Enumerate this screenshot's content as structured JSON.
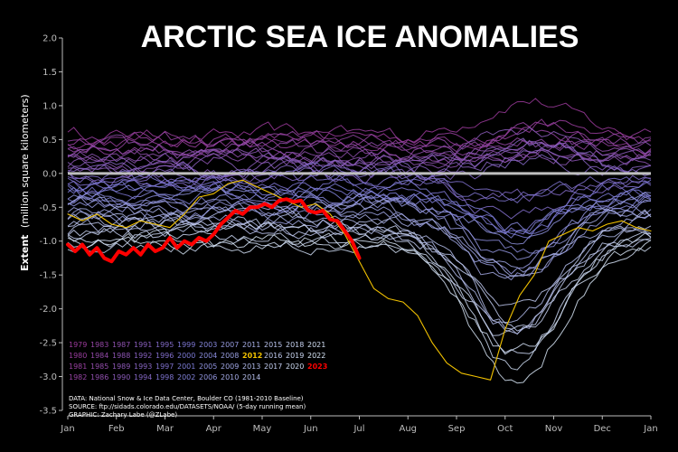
{
  "chart_data": {
    "type": "line",
    "title": "ARCTIC SEA ICE ANOMALIES",
    "ylabel_bold": "Extent",
    "ylabel_rest": "(million square kilometers)",
    "ylim": [
      -3.5,
      2.0
    ],
    "yticks": [
      "2.0",
      "1.5",
      "1.0",
      "0.5",
      "0.0",
      "-0.5",
      "-1.0",
      "-1.5",
      "-2.0",
      "-2.5",
      "-3.0",
      "-3.5"
    ],
    "months": [
      "Jan",
      "Feb",
      "Mar",
      "Apr",
      "May",
      "Jun",
      "Jul",
      "Aug",
      "Sep",
      "Oct",
      "Nov",
      "Dec",
      "Jan"
    ],
    "baseline": 0.0,
    "grid": false,
    "legend_position": "bottom-left",
    "legend_rows": [
      [
        "1979",
        "1983",
        "1987",
        "1991",
        "1995",
        "1999",
        "2003",
        "2007",
        "2011",
        "2015",
        "2018",
        "2021"
      ],
      [
        "1980",
        "1984",
        "1988",
        "1992",
        "1996",
        "2000",
        "2004",
        "2008",
        "2012",
        "2016",
        "2019",
        "2022"
      ],
      [
        "1981",
        "1985",
        "1989",
        "1993",
        "1997",
        "2001",
        "2005",
        "2009",
        "2013",
        "2017",
        "2020",
        "2023"
      ],
      [
        "1982",
        "1986",
        "1990",
        "1994",
        "1998",
        "2002",
        "2006",
        "2010",
        "2014"
      ]
    ],
    "colors": {
      "early": "#9b3a9b",
      "mid": "#7a7ad6",
      "late": "#d6e4f5",
      "year_2012": "#f2c200",
      "year_2023": "#ff0000",
      "baseline": "#bfbfbf"
    },
    "highlight_2012": {
      "x": [
        0,
        0.3,
        0.6,
        0.9,
        1.2,
        1.5,
        1.8,
        2.1,
        2.4,
        2.7,
        3.0,
        3.3,
        3.6,
        3.9,
        4.2,
        4.5,
        4.8,
        5.1,
        5.4,
        5.7,
        6.0,
        6.3,
        6.6,
        6.9,
        7.2,
        7.5,
        7.8,
        8.1,
        8.4,
        8.7,
        9.0,
        9.3,
        9.6,
        9.9,
        10.2,
        10.5,
        10.8,
        11.1,
        11.4,
        11.7,
        12.0
      ],
      "y": [
        -0.6,
        -0.7,
        -0.6,
        -0.75,
        -0.8,
        -0.7,
        -0.75,
        -0.8,
        -0.6,
        -0.35,
        -0.3,
        -0.15,
        -0.1,
        -0.2,
        -0.3,
        -0.4,
        -0.5,
        -0.45,
        -0.6,
        -0.9,
        -1.3,
        -1.7,
        -1.85,
        -1.9,
        -2.1,
        -2.5,
        -2.8,
        -2.95,
        -3.0,
        -3.05,
        -2.3,
        -1.8,
        -1.5,
        -1.0,
        -0.9,
        -0.8,
        -0.85,
        -0.75,
        -0.7,
        -0.8,
        -0.85
      ]
    },
    "highlight_2023": {
      "x": [
        0,
        0.15,
        0.3,
        0.45,
        0.6,
        0.75,
        0.9,
        1.05,
        1.2,
        1.35,
        1.5,
        1.65,
        1.8,
        1.95,
        2.1,
        2.25,
        2.4,
        2.55,
        2.7,
        2.85,
        3.0,
        3.15,
        3.3,
        3.45,
        3.6,
        3.75,
        3.9,
        4.05,
        4.2,
        4.35,
        4.5,
        4.65,
        4.8,
        4.95,
        5.1,
        5.25,
        5.4,
        5.55,
        5.7,
        5.85,
        6.0
      ],
      "y": [
        -1.05,
        -1.15,
        -1.05,
        -1.2,
        -1.1,
        -1.25,
        -1.3,
        -1.15,
        -1.2,
        -1.1,
        -1.2,
        -1.05,
        -1.15,
        -1.1,
        -0.95,
        -1.1,
        -1.0,
        -1.05,
        -0.95,
        -1.0,
        -0.9,
        -0.75,
        -0.65,
        -0.55,
        -0.6,
        -0.5,
        -0.5,
        -0.45,
        -0.5,
        -0.4,
        -0.38,
        -0.42,
        -0.4,
        -0.55,
        -0.58,
        -0.55,
        -0.68,
        -0.7,
        -0.85,
        -1.0,
        -1.25
      ]
    }
  },
  "credits": {
    "data": "DATA: National Snow & Ice Data Center, Boulder CO (1981-2010 Baseline)",
    "source": "SOURCE: ftp://sidads.colorado.edu/DATASETS/NOAA/ (5-day running mean)",
    "graphic": "GRAPHIC: Zachary Labe (@ZLabe)"
  }
}
